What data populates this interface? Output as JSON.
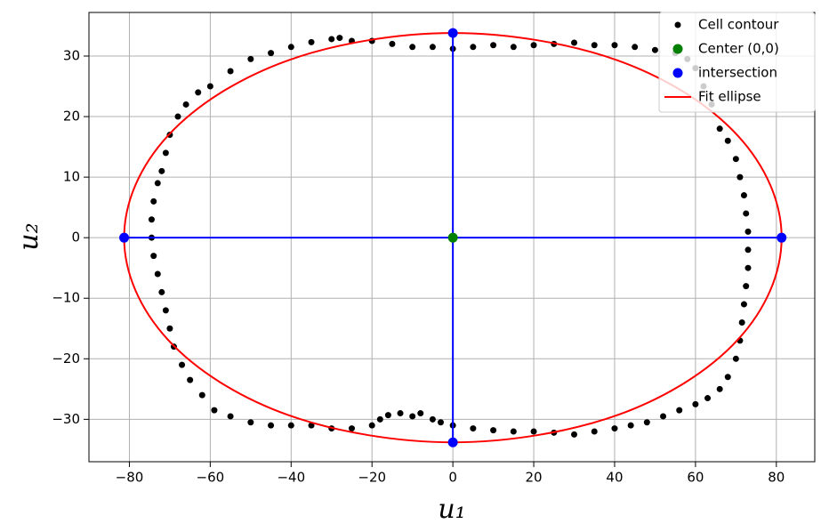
{
  "chart_data": {
    "type": "scatter",
    "x_label": "u₁",
    "y_label": "u₂",
    "xlim": [
      -90,
      89.5
    ],
    "ylim": [
      -37,
      37.2
    ],
    "xticks": [
      {
        "value": -80,
        "label": "−80"
      },
      {
        "value": -60,
        "label": "−60"
      },
      {
        "value": -40,
        "label": "−40"
      },
      {
        "value": -20,
        "label": "−20"
      },
      0,
      20,
      40,
      60,
      80
    ],
    "yticks": [
      {
        "value": -30,
        "label": "−30"
      },
      {
        "value": -20,
        "label": "−20"
      },
      {
        "value": -10,
        "label": "−10"
      },
      0,
      10,
      20,
      30
    ],
    "grid": true,
    "legend": "upper right",
    "series": [
      {
        "name": "Cell contour",
        "color": "#000000",
        "kind": "scatter",
        "x": [
          -60,
          -55,
          -50,
          -45,
          -40,
          -35,
          -30,
          -28,
          -25,
          -20,
          -15,
          -10,
          -5,
          0,
          5,
          10,
          15,
          20,
          25,
          30,
          35,
          40,
          45,
          50,
          55,
          58,
          60,
          62,
          64,
          66,
          68,
          70,
          71,
          72,
          72.5,
          73,
          73,
          73,
          72.5,
          72,
          71.5,
          71,
          70,
          68,
          66,
          63,
          60,
          56,
          52,
          48,
          44,
          40,
          35,
          30,
          25,
          20,
          15,
          10,
          5,
          0,
          -3,
          -5,
          -8,
          -10,
          -13,
          -16,
          -18,
          -20,
          -25,
          -30,
          -35,
          -40,
          -45,
          -50,
          -55,
          -59,
          -62,
          -65,
          -67,
          -69,
          -70,
          -71,
          -72,
          -73,
          -74,
          -74.5,
          -74.5,
          -74,
          -73,
          -72,
          -71,
          -70,
          -68,
          -66,
          -63
        ],
        "y": [
          25,
          27.5,
          29.5,
          30.5,
          31.5,
          32.3,
          32.8,
          33,
          32.5,
          32.5,
          32,
          31.5,
          31.5,
          31.2,
          31.5,
          31.8,
          31.5,
          31.8,
          32,
          32.2,
          31.8,
          31.8,
          31.5,
          31,
          30.5,
          29.5,
          28,
          25,
          22,
          18,
          16,
          13,
          10,
          7,
          4,
          1,
          -2,
          -5,
          -8,
          -11,
          -14,
          -17,
          -20,
          -23,
          -25,
          -26.5,
          -27.5,
          -28.5,
          -29.5,
          -30.5,
          -31,
          -31.5,
          -32,
          -32.5,
          -32.2,
          -32,
          -32,
          -31.8,
          -31.5,
          -31,
          -30.5,
          -30,
          -29,
          -29.5,
          -29,
          -29.3,
          -30,
          -31,
          -31.5,
          -31.5,
          -31,
          -31,
          -31,
          -30.5,
          -29.5,
          -28.5,
          -26,
          -23.5,
          -21,
          -18,
          -15,
          -12,
          -9,
          -6,
          -3,
          0,
          3,
          6,
          9,
          11,
          14,
          17,
          20,
          22,
          24
        ]
      },
      {
        "name": "Center (0,0)",
        "color": "#008000",
        "kind": "scatter",
        "x": [
          0
        ],
        "y": [
          0
        ]
      },
      {
        "name": "intersection",
        "color": "#0000ff",
        "kind": "scatter",
        "x": [
          -81.3,
          81.3,
          0,
          0
        ],
        "y": [
          0,
          0,
          33.8,
          -33.8
        ]
      },
      {
        "name": "Fit ellipse",
        "color": "#ff0000",
        "kind": "line",
        "x": [
          81.3,
          78.5,
          70.4,
          57.5,
          40.7,
          21.0,
          0,
          -21.0,
          -40.7,
          -57.5,
          -70.4,
          -78.5,
          -81.3,
          -78.5,
          -70.4,
          -57.5,
          -40.7,
          -21.0,
          0,
          21.0,
          40.7,
          57.5,
          70.4,
          78.5
        ],
        "y": [
          0,
          8.7,
          16.9,
          23.9,
          29.3,
          32.6,
          33.8,
          32.6,
          29.3,
          23.9,
          16.9,
          8.7,
          0,
          -8.7,
          -16.9,
          -23.9,
          -29.3,
          -32.6,
          -33.8,
          -32.6,
          -29.3,
          -23.9,
          -16.9,
          -8.7
        ]
      }
    ]
  }
}
